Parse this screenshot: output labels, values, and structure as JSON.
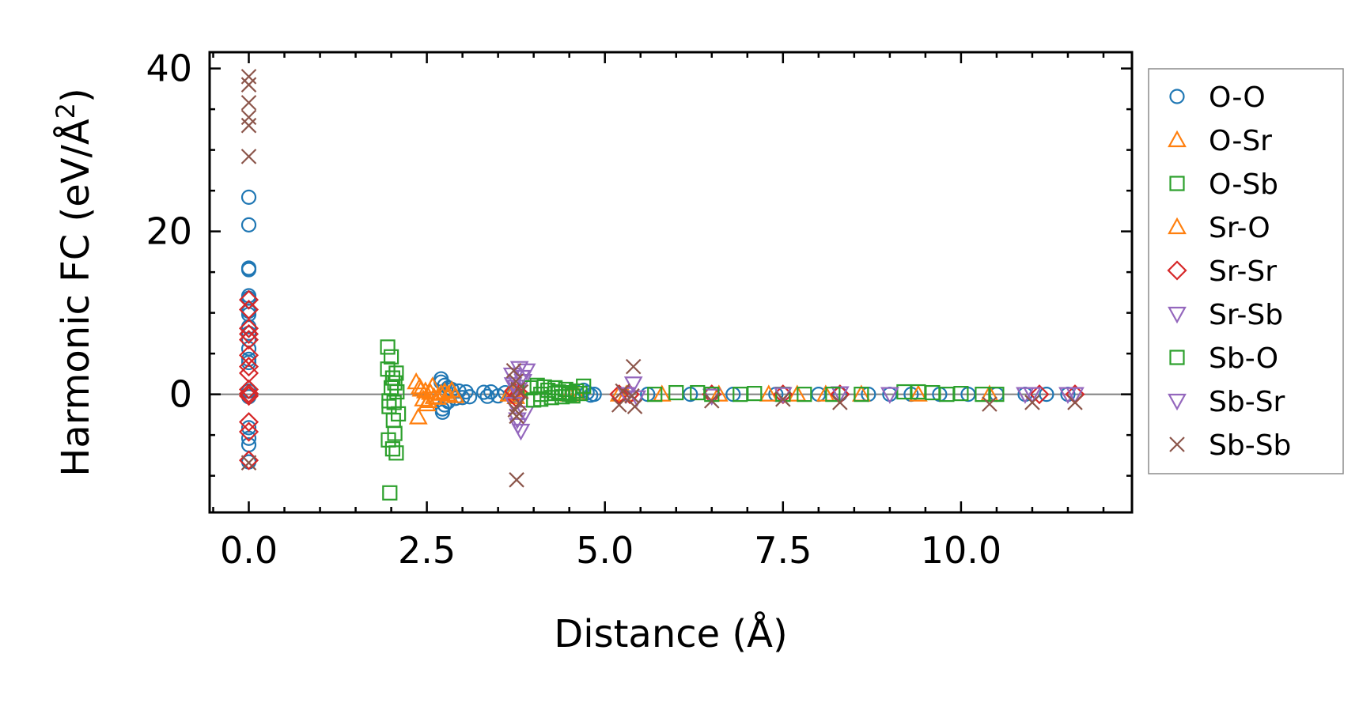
{
  "chart_data": {
    "type": "scatter",
    "title": "",
    "xlabel": "Distance (Å)",
    "ylabel_main": "Harmonic FC (eV/Å",
    "ylabel_sup": "2",
    "ylabel_close": ")",
    "xlim": [
      -0.55,
      12.4
    ],
    "ylim": [
      -14.5,
      42
    ],
    "xticks": [
      0.0,
      2.5,
      5.0,
      7.5,
      10.0
    ],
    "xtick_labels": [
      "0.0",
      "2.5",
      "5.0",
      "7.5",
      "10.0"
    ],
    "yticks": [
      0,
      20,
      40
    ],
    "ytick_labels": [
      "0",
      "20",
      "40"
    ],
    "x_minor_step": 0.5,
    "y_minor_step": 5,
    "zero_line": true,
    "legend_position": "outside-right",
    "series": [
      {
        "name": "O-O",
        "marker": "circle",
        "color": "#1f77b4",
        "x": [
          0,
          0,
          0,
          0,
          0,
          0,
          0,
          0,
          0,
          0,
          0,
          0,
          0,
          0,
          0,
          0,
          0,
          0,
          0,
          0,
          2.7,
          2.7,
          2.72,
          2.72,
          2.75,
          2.75,
          2.8,
          2.8,
          2.85,
          2.9,
          2.95,
          3.0,
          3.05,
          3.1,
          3.3,
          3.35,
          3.4,
          3.5,
          3.6,
          3.7,
          4.7,
          4.75,
          4.8,
          4.85,
          5.6,
          6.2,
          6.8,
          7.4,
          8.0,
          8.3,
          8.7,
          9.0,
          9.3,
          9.7,
          10.1,
          10.5,
          10.9,
          11.2,
          11.5
        ],
        "y": [
          24.2,
          20.8,
          15.5,
          15.3,
          12.1,
          11.8,
          10.2,
          9.8,
          8.3,
          7.5,
          6.7,
          5.6,
          4.3,
          3.9,
          0.4,
          -0.3,
          -4.1,
          -5.4,
          -6.2,
          -8.3,
          1.9,
          1.5,
          -2.2,
          -1.8,
          1.1,
          -1.3,
          0.8,
          -0.9,
          0.6,
          -0.5,
          0.4,
          -0.4,
          0.3,
          -0.3,
          0.25,
          -0.25,
          0.3,
          -0.2,
          0.2,
          -0.1,
          0.5,
          0.2,
          -0.1,
          0.0,
          0.0,
          0.0,
          0.0,
          0.0,
          0.0,
          0.0,
          0.0,
          0.0,
          0.0,
          0.0,
          0.0,
          0.0,
          0.0,
          0.0,
          0.0
        ]
      },
      {
        "name": "O-Sr",
        "marker": "triangle-up",
        "color": "#ff7f0e",
        "x": [
          2.35,
          2.38,
          2.4,
          2.45,
          2.48,
          2.5,
          2.55,
          2.6,
          2.7,
          2.8,
          2.9,
          3.7,
          3.75,
          4.5,
          5.2,
          5.8,
          6.6,
          7.3,
          7.7,
          8.1,
          8.6,
          9.4,
          10.4
        ],
        "y": [
          1.5,
          -2.8,
          0.9,
          -0.6,
          0.4,
          -1.2,
          0.2,
          -0.3,
          0.1,
          0.0,
          -0.2,
          0.1,
          -0.3,
          0.0,
          0.0,
          0.0,
          0.0,
          0.0,
          0.0,
          0.0,
          0.0,
          0.0,
          0.0
        ]
      },
      {
        "name": "O-Sb",
        "marker": "square",
        "color": "#2ca02c",
        "x": [
          1.95,
          1.95,
          1.96,
          1.97,
          1.98,
          2.0,
          2.0,
          2.02,
          2.02,
          2.03,
          2.05,
          2.05,
          2.07,
          2.07,
          2.08,
          2.1,
          1.97,
          2.04
        ],
        "y": [
          5.8,
          3.1,
          -5.6,
          -1.5,
          -12.1,
          4.6,
          0.8,
          -6.7,
          2.0,
          -3.2,
          1.4,
          -4.8,
          2.6,
          -7.2,
          0.3,
          -2.4,
          -0.8,
          -1.0
        ]
      },
      {
        "name": "Sr-O",
        "marker": "triangle-up",
        "color": "#ff7f0e",
        "x": [
          2.42,
          2.52,
          2.58,
          2.65,
          2.75,
          2.85,
          3.65,
          3.8,
          4.6,
          5.3
        ],
        "y": [
          0.6,
          -0.8,
          1.0,
          -0.4,
          0.3,
          0.5,
          0.0,
          0.4,
          0.1,
          0.0
        ]
      },
      {
        "name": "Sr-Sr",
        "marker": "diamond",
        "color": "#d62728",
        "x": [
          0,
          0,
          0,
          0,
          0,
          0,
          0,
          0,
          0,
          0,
          0,
          0,
          0,
          0,
          3.72,
          3.75,
          3.8,
          5.2,
          5.35,
          6.5,
          7.5,
          8.3,
          11.1,
          11.6
        ],
        "y": [
          11.6,
          10.4,
          8.1,
          7.4,
          6.7,
          4.8,
          3.4,
          2.6,
          0.6,
          0.1,
          -0.2,
          -3.4,
          -4.6,
          -8.1,
          0.4,
          -0.4,
          0.1,
          0.0,
          0.0,
          0.0,
          0.0,
          0.0,
          0.0,
          0.0
        ]
      },
      {
        "name": "Sr-Sb",
        "marker": "triangle-down",
        "color": "#9467bd",
        "x": [
          3.7,
          3.72,
          3.75,
          3.78,
          3.8,
          3.82,
          3.85,
          3.88,
          3.9,
          5.4,
          5.45,
          6.5,
          8.3,
          11.0,
          11.6
        ],
        "y": [
          2.4,
          -1.2,
          0.9,
          -3.8,
          3.2,
          -4.5,
          1.6,
          -2.3,
          2.9,
          1.3,
          -0.4,
          -0.2,
          0.1,
          0.0,
          0.0
        ]
      },
      {
        "name": "Sb-O",
        "marker": "square",
        "color": "#2ca02c",
        "x": [
          3.95,
          4.0,
          4.05,
          4.1,
          4.15,
          4.2,
          4.25,
          4.3,
          4.35,
          4.4,
          4.45,
          4.5,
          4.55,
          4.6,
          4.65,
          4.7,
          4.1,
          4.3,
          4.5,
          5.7,
          6.0,
          6.3,
          6.5,
          6.9,
          7.1,
          7.5,
          7.8,
          8.2,
          8.6,
          9.2,
          9.4,
          9.6,
          9.8,
          10.0,
          10.3,
          10.5
        ],
        "y": [
          0.8,
          -0.7,
          1.1,
          -0.6,
          0.9,
          0.5,
          -0.4,
          0.8,
          0.3,
          -0.3,
          0.6,
          0.2,
          -0.2,
          0.4,
          0.1,
          1.0,
          0.0,
          0.1,
          0.0,
          0.0,
          0.2,
          0.2,
          0.0,
          0.0,
          0.1,
          0.0,
          0.0,
          0.0,
          0.0,
          0.3,
          0.3,
          0.2,
          0.0,
          0.1,
          0.0,
          0.0
        ]
      },
      {
        "name": "Sb-Sr",
        "marker": "triangle-down",
        "color": "#9467bd",
        "x": [
          3.71,
          3.77,
          3.83,
          5.3,
          7.5,
          9.0,
          10.9,
          11.5
        ],
        "y": [
          1.2,
          -3.1,
          2.1,
          0.0,
          0.0,
          0.0,
          0.0,
          0.0
        ]
      },
      {
        "name": "Sb-Sb",
        "marker": "x",
        "color": "#8c564b",
        "x": [
          0,
          0,
          0,
          0,
          0,
          0,
          0,
          3.72,
          3.74,
          3.75,
          3.76,
          3.78,
          3.8,
          3.82,
          3.76,
          5.2,
          5.25,
          5.4,
          5.42,
          5.38,
          6.5,
          7.5,
          8.3,
          10.4,
          11.0,
          11.6
        ],
        "y": [
          39.0,
          38.0,
          35.8,
          34.0,
          33.0,
          29.2,
          -8.4,
          2.9,
          -1.9,
          1.6,
          -2.7,
          0.6,
          -1.1,
          0.3,
          -10.5,
          -1.3,
          0.4,
          3.4,
          -1.5,
          -0.2,
          -0.8,
          -0.6,
          -1.0,
          -1.2,
          -1.0,
          -1.0
        ]
      }
    ]
  }
}
